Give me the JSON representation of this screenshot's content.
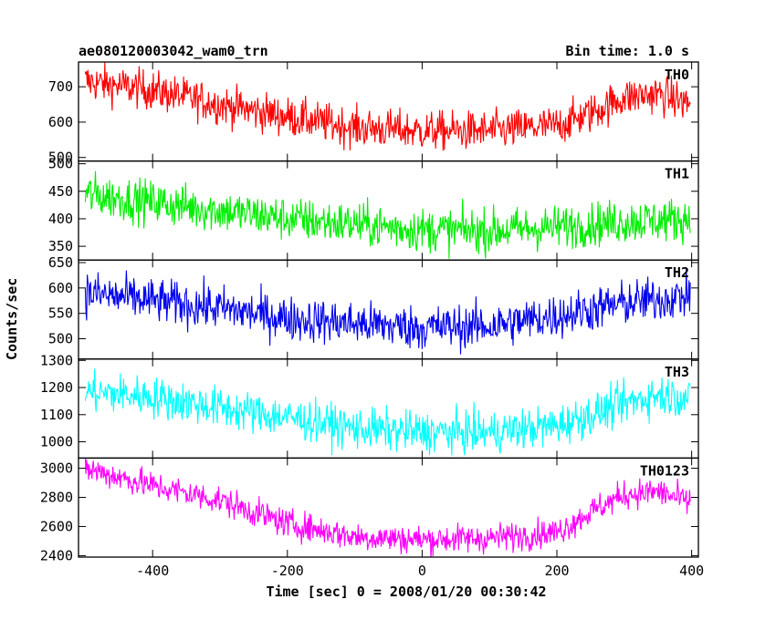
{
  "header": {
    "title": "ae080120003042_wam0_trn",
    "bin_time": "Bin time: 1.0 s"
  },
  "chart_data": {
    "type": "line",
    "xlabel": "Time [sec] 0 = 2008/01/20 00:30:42",
    "ylabel": "Counts/sec",
    "xlim": [
      -510,
      410
    ],
    "xticks": [
      -400,
      -200,
      0,
      200,
      400
    ],
    "panels": [
      {
        "name": "TH0",
        "color": "#ff0000",
        "ylim": [
          490,
          770
        ],
        "yticks": [
          500,
          600,
          700
        ],
        "trend": [
          [
            -500,
            715
          ],
          [
            -400,
            690
          ],
          [
            -300,
            650
          ],
          [
            -200,
            615
          ],
          [
            -100,
            585
          ],
          [
            0,
            575
          ],
          [
            100,
            575
          ],
          [
            200,
            590
          ],
          [
            250,
            625
          ],
          [
            300,
            670
          ],
          [
            350,
            680
          ],
          [
            400,
            650
          ]
        ],
        "noise": 28
      },
      {
        "name": "TH1",
        "color": "#00ee00",
        "ylim": [
          325,
          505
        ],
        "yticks": [
          350,
          400,
          450,
          500
        ],
        "trend": [
          [
            -500,
            445
          ],
          [
            -400,
            430
          ],
          [
            -300,
            415
          ],
          [
            -200,
            400
          ],
          [
            -100,
            390
          ],
          [
            0,
            380
          ],
          [
            100,
            378
          ],
          [
            200,
            385
          ],
          [
            300,
            395
          ],
          [
            400,
            400
          ]
        ],
        "noise": 20
      },
      {
        "name": "TH2",
        "color": "#0000ee",
        "ylim": [
          460,
          655
        ],
        "yticks": [
          500,
          550,
          600,
          650
        ],
        "trend": [
          [
            -500,
            590
          ],
          [
            -400,
            575
          ],
          [
            -300,
            560
          ],
          [
            -200,
            540
          ],
          [
            -100,
            530
          ],
          [
            0,
            522
          ],
          [
            100,
            525
          ],
          [
            200,
            545
          ],
          [
            300,
            570
          ],
          [
            400,
            585
          ]
        ],
        "noise": 22
      },
      {
        "name": "TH3",
        "color": "#00ffff",
        "ylim": [
          940,
          1305
        ],
        "yticks": [
          1000,
          1100,
          1200,
          1300
        ],
        "trend": [
          [
            -500,
            1185
          ],
          [
            -400,
            1165
          ],
          [
            -300,
            1125
          ],
          [
            -200,
            1090
          ],
          [
            -100,
            1050
          ],
          [
            0,
            1035
          ],
          [
            100,
            1035
          ],
          [
            200,
            1060
          ],
          [
            300,
            1140
          ],
          [
            350,
            1175
          ],
          [
            400,
            1160
          ]
        ],
        "noise": 38
      },
      {
        "name": "TH0123",
        "color": "#ff00ff",
        "ylim": [
          2390,
          3070
        ],
        "yticks": [
          2400,
          2600,
          2800,
          3000
        ],
        "trend": [
          [
            -500,
            3000
          ],
          [
            -400,
            2880
          ],
          [
            -300,
            2780
          ],
          [
            -200,
            2620
          ],
          [
            -100,
            2530
          ],
          [
            0,
            2510
          ],
          [
            100,
            2520
          ],
          [
            200,
            2560
          ],
          [
            250,
            2700
          ],
          [
            300,
            2820
          ],
          [
            350,
            2840
          ],
          [
            400,
            2760
          ]
        ],
        "noise": 50
      }
    ]
  }
}
